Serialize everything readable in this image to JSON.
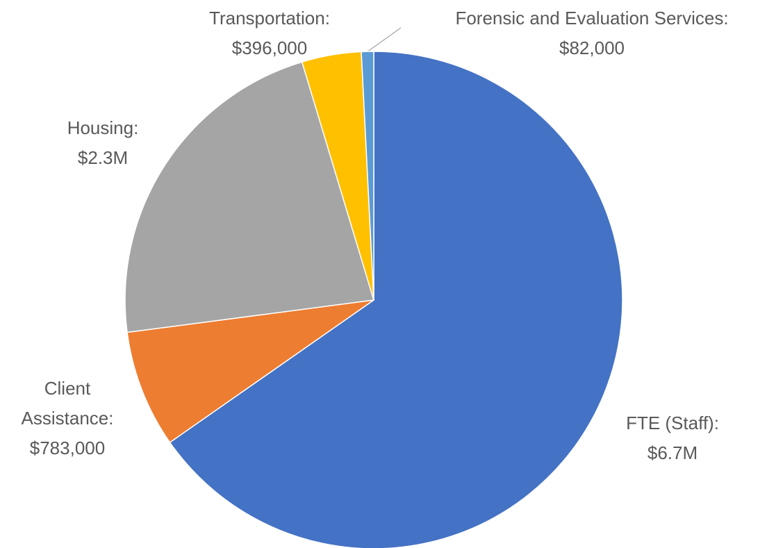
{
  "chart_data": {
    "type": "pie",
    "categories": [
      "FTE (Staff):",
      "Client Assistance:",
      "Housing:",
      "Transportation:",
      "Forensic and Evaluation Services:"
    ],
    "values": [
      6700000,
      783000,
      2300000,
      396000,
      82000
    ],
    "value_labels": [
      "$6.7M",
      "$783,000",
      "$2.3M",
      "$396,000",
      "$82,000"
    ],
    "colors": [
      "#4472c4",
      "#ed7d31",
      "#a5a5a5",
      "#ffc000",
      "#5b9bd5"
    ]
  }
}
